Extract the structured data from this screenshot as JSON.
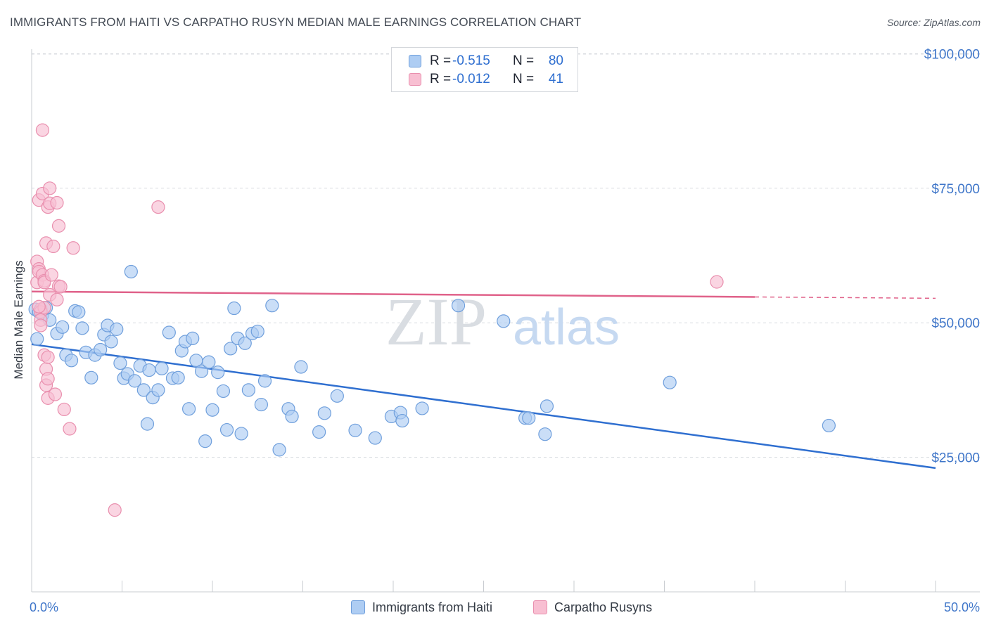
{
  "header": {
    "title": "IMMIGRANTS FROM HAITI VS CARPATHO RUSYN MEDIAN MALE EARNINGS CORRELATION CHART",
    "source": "Source: ZipAtlas.com"
  },
  "watermark": {
    "zip": "ZIP",
    "atlas": "atlas"
  },
  "legend": {
    "rows": [
      {
        "r_label": "R =",
        "r_value": "-0.515",
        "n_label": "N =",
        "n_value": "80"
      },
      {
        "r_label": "R =",
        "r_value": "-0.012",
        "n_label": "N =",
        "n_value": "41"
      }
    ]
  },
  "bottom_legend": {
    "haiti": "Immigrants from Haiti",
    "rusyn": "Carpatho Rusyns"
  },
  "colors": {
    "haiti_fill": "#aecdf3",
    "haiti_stroke": "#6f9fdc",
    "haiti_line": "#2f6fd0",
    "rusyn_fill": "#f8bfd2",
    "rusyn_stroke": "#e98fae",
    "rusyn_line": "#e0628a",
    "axis_text": "#3f76c9",
    "grid": "#d8dbe0"
  },
  "chart_data": {
    "type": "scatter",
    "title": "IMMIGRANTS FROM HAITI VS CARPATHO RUSYN MEDIAN MALE EARNINGS CORRELATION CHART",
    "ylabel": "Median Male Earnings",
    "xlabel": "",
    "xlim": [
      0,
      50
    ],
    "ylim": [
      0,
      105000
    ],
    "x_tick_labels": [
      "0.0%",
      "50.0%"
    ],
    "y_ticks": [
      25000,
      50000,
      75000,
      100000
    ],
    "y_tick_labels": [
      "$25,000",
      "$50,000",
      "$75,000",
      "$100,000"
    ],
    "grid": true,
    "legend_position": "top-center",
    "series": [
      {
        "name": "Immigrants from Haiti",
        "R": -0.515,
        "N": 80,
        "trend": {
          "x": [
            0,
            50
          ],
          "y": [
            46000,
            23000
          ]
        },
        "points": [
          [
            0.2,
            52500
          ],
          [
            0.4,
            52000
          ],
          [
            0.6,
            51500
          ],
          [
            0.8,
            52800
          ],
          [
            1.0,
            50500
          ],
          [
            1.4,
            48000
          ],
          [
            1.7,
            49200
          ],
          [
            1.9,
            44000
          ],
          [
            2.2,
            43000
          ],
          [
            2.4,
            52200
          ],
          [
            2.6,
            52000
          ],
          [
            2.8,
            49000
          ],
          [
            3.0,
            44500
          ],
          [
            3.3,
            39800
          ],
          [
            3.5,
            44000
          ],
          [
            3.8,
            45000
          ],
          [
            4.0,
            47800
          ],
          [
            4.2,
            49500
          ],
          [
            4.4,
            46500
          ],
          [
            4.7,
            48800
          ],
          [
            4.9,
            42500
          ],
          [
            5.1,
            39700
          ],
          [
            5.3,
            40500
          ],
          [
            5.5,
            59500
          ],
          [
            5.7,
            39200
          ],
          [
            6.0,
            42000
          ],
          [
            6.2,
            37500
          ],
          [
            6.4,
            31200
          ],
          [
            6.5,
            41200
          ],
          [
            6.7,
            36100
          ],
          [
            7.0,
            37500
          ],
          [
            7.2,
            41500
          ],
          [
            7.6,
            48200
          ],
          [
            7.8,
            39700
          ],
          [
            8.1,
            39800
          ],
          [
            8.3,
            44800
          ],
          [
            8.5,
            46500
          ],
          [
            8.7,
            34000
          ],
          [
            8.9,
            47100
          ],
          [
            9.1,
            43000
          ],
          [
            9.4,
            41000
          ],
          [
            9.6,
            28000
          ],
          [
            9.8,
            42700
          ],
          [
            10.0,
            33800
          ],
          [
            10.3,
            40800
          ],
          [
            10.6,
            37300
          ],
          [
            10.8,
            30100
          ],
          [
            11.0,
            45200
          ],
          [
            11.2,
            52700
          ],
          [
            11.4,
            47100
          ],
          [
            11.6,
            29400
          ],
          [
            11.8,
            46200
          ],
          [
            12.0,
            37500
          ],
          [
            12.2,
            48000
          ],
          [
            12.5,
            48400
          ],
          [
            12.7,
            34800
          ],
          [
            12.9,
            39200
          ],
          [
            13.3,
            53200
          ],
          [
            13.7,
            26400
          ],
          [
            14.2,
            34000
          ],
          [
            14.4,
            32600
          ],
          [
            14.9,
            41800
          ],
          [
            15.9,
            29700
          ],
          [
            16.2,
            33200
          ],
          [
            16.9,
            36400
          ],
          [
            17.9,
            30000
          ],
          [
            19.0,
            28600
          ],
          [
            19.9,
            32600
          ],
          [
            20.4,
            33300
          ],
          [
            20.5,
            31800
          ],
          [
            21.6,
            34100
          ],
          [
            23.6,
            53200
          ],
          [
            26.1,
            50300
          ],
          [
            27.3,
            32300
          ],
          [
            27.5,
            32300
          ],
          [
            28.4,
            29300
          ],
          [
            28.5,
            34500
          ],
          [
            35.3,
            38900
          ],
          [
            44.1,
            30900
          ],
          [
            0.3,
            47000
          ]
        ]
      },
      {
        "name": "Carpatho Rusyns",
        "R": -0.012,
        "N": 41,
        "trend": {
          "x": [
            0,
            40
          ],
          "y": [
            55800,
            54800
          ],
          "dashed_extension_to_x": 50
        },
        "points": [
          [
            0.3,
            61400
          ],
          [
            0.3,
            57500
          ],
          [
            0.4,
            72800
          ],
          [
            0.4,
            60000
          ],
          [
            0.4,
            59500
          ],
          [
            0.5,
            52500
          ],
          [
            0.5,
            52000
          ],
          [
            0.5,
            50500
          ],
          [
            0.5,
            49500
          ],
          [
            0.6,
            85800
          ],
          [
            0.6,
            74000
          ],
          [
            0.6,
            58900
          ],
          [
            0.7,
            57800
          ],
          [
            0.7,
            57500
          ],
          [
            0.7,
            52800
          ],
          [
            0.7,
            44000
          ],
          [
            0.8,
            64800
          ],
          [
            0.8,
            41400
          ],
          [
            0.8,
            38400
          ],
          [
            0.9,
            71500
          ],
          [
            0.9,
            43600
          ],
          [
            0.9,
            39600
          ],
          [
            0.9,
            36000
          ],
          [
            1.0,
            75000
          ],
          [
            1.0,
            72200
          ],
          [
            1.0,
            55200
          ],
          [
            1.1,
            58900
          ],
          [
            1.2,
            64200
          ],
          [
            1.3,
            36700
          ],
          [
            1.4,
            54300
          ],
          [
            1.4,
            72300
          ],
          [
            1.5,
            68000
          ],
          [
            1.5,
            56800
          ],
          [
            1.6,
            56700
          ],
          [
            1.8,
            33900
          ],
          [
            2.1,
            30300
          ],
          [
            2.3,
            63900
          ],
          [
            4.6,
            15200
          ],
          [
            7.0,
            71500
          ],
          [
            37.9,
            57600
          ],
          [
            0.4,
            53000
          ]
        ]
      }
    ]
  }
}
